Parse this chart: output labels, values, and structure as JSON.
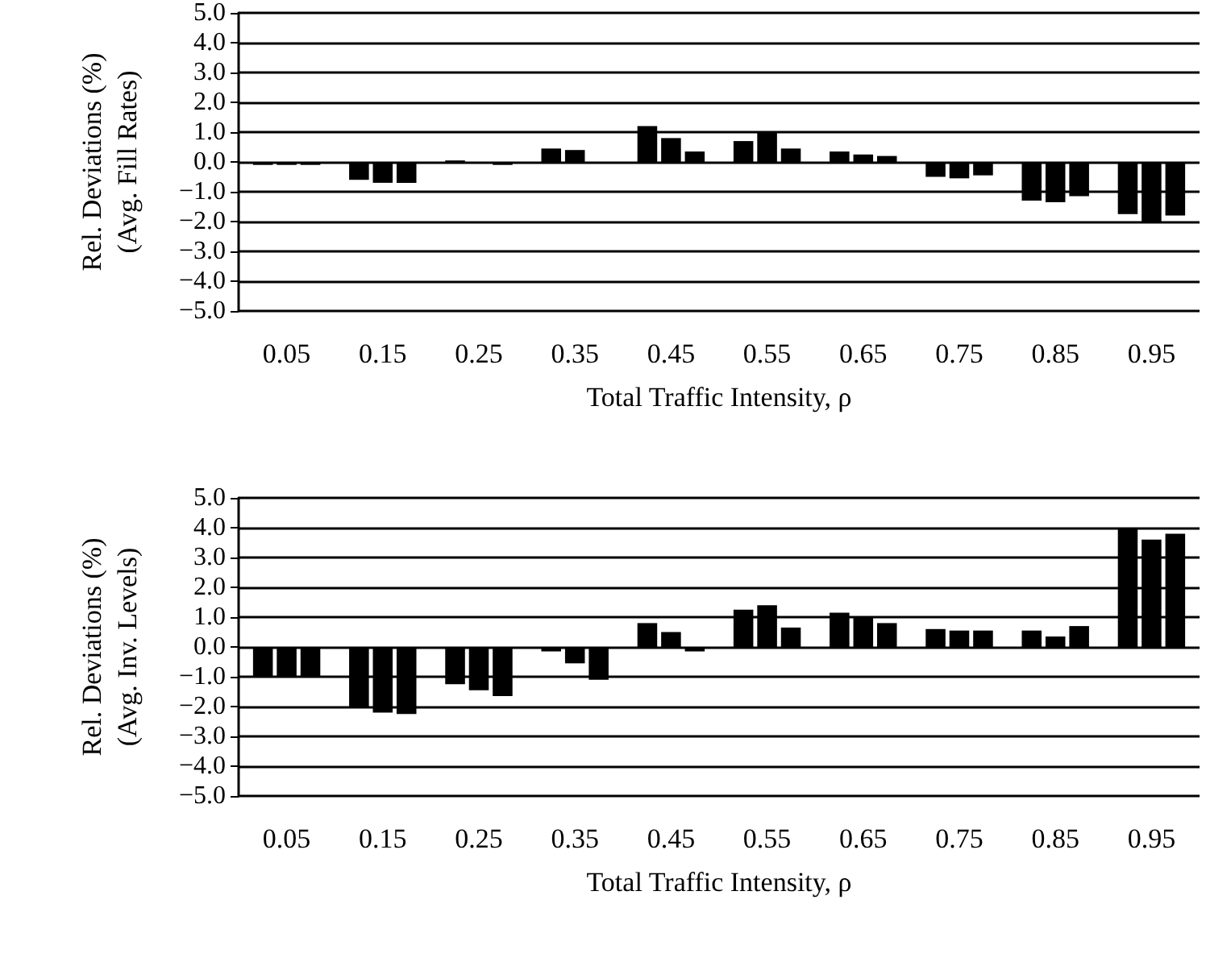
{
  "chart_data": [
    {
      "type": "bar",
      "ylabel": "Rel. Deviations (%)\n(Avg. Fill Rates)",
      "xlabel": "Total Traffic Intensity, ρ",
      "categories": [
        "0.05",
        "0.15",
        "0.25",
        "0.35",
        "0.45",
        "0.55",
        "0.65",
        "0.75",
        "0.85",
        "0.95"
      ],
      "series": [
        {
          "color": "#000000",
          "values": [
            -0.1,
            -0.6,
            0.05,
            0.45,
            1.2,
            0.7,
            0.35,
            -0.5,
            -1.3,
            -1.75
          ]
        },
        {
          "color": "#000000",
          "values": [
            -0.1,
            -0.7,
            0,
            0.4,
            0.8,
            1.0,
            0.25,
            -0.55,
            -1.35,
            -2.0
          ]
        },
        {
          "color": "#000000",
          "values": [
            -0.1,
            -0.7,
            -0.1,
            0,
            0.35,
            0.45,
            0.2,
            -0.45,
            -1.15,
            -1.8
          ]
        }
      ],
      "ylim": [
        -5,
        5
      ],
      "yticks": [
        {
          "value": 5,
          "label": "5.0"
        },
        {
          "value": 4,
          "label": "4.0"
        },
        {
          "value": 3,
          "label": "3.0"
        },
        {
          "value": 2,
          "label": "2.0"
        },
        {
          "value": 1,
          "label": "1.0"
        },
        {
          "value": 0,
          "label": "0.0"
        },
        {
          "value": -1,
          "label": "−1.0"
        },
        {
          "value": -2,
          "label": "−2.0"
        },
        {
          "value": -3,
          "label": "−3.0"
        },
        {
          "value": -4,
          "label": "−4.0"
        },
        {
          "value": -5,
          "label": "−5.0"
        }
      ],
      "grid": "y"
    },
    {
      "type": "bar",
      "ylabel": "Rel. Deviations (%)\n(Avg. Inv. Levels)",
      "xlabel": "Total Traffic Intensity, ρ",
      "categories": [
        "0.05",
        "0.15",
        "0.25",
        "0.35",
        "0.45",
        "0.55",
        "0.65",
        "0.75",
        "0.85",
        "0.95"
      ],
      "series": [
        {
          "color": "#000000",
          "values": [
            -1.0,
            -2.05,
            -1.25,
            -0.15,
            0.8,
            1.25,
            1.15,
            0.6,
            0.55,
            4.0
          ]
        },
        {
          "color": "#000000",
          "values": [
            -1.0,
            -2.2,
            -1.45,
            -0.55,
            0.5,
            1.4,
            1.0,
            0.55,
            0.35,
            3.6
          ]
        },
        {
          "color": "#000000",
          "values": [
            -1.0,
            -2.25,
            -1.65,
            -1.1,
            -0.15,
            0.65,
            0.8,
            0.55,
            0.7,
            3.8
          ]
        }
      ],
      "ylim": [
        -5,
        5
      ],
      "yticks": [
        {
          "value": 5,
          "label": "5.0"
        },
        {
          "value": 4,
          "label": "4.0"
        },
        {
          "value": 3,
          "label": "3.0"
        },
        {
          "value": 2,
          "label": "2.0"
        },
        {
          "value": 1,
          "label": "1.0"
        },
        {
          "value": 0,
          "label": "0.0"
        },
        {
          "value": -1,
          "label": "−1.0"
        },
        {
          "value": -2,
          "label": "−2.0"
        },
        {
          "value": -3,
          "label": "−3.0"
        },
        {
          "value": -4,
          "label": "−4.0"
        },
        {
          "value": -5,
          "label": "−5.0"
        }
      ],
      "grid": "y"
    }
  ]
}
